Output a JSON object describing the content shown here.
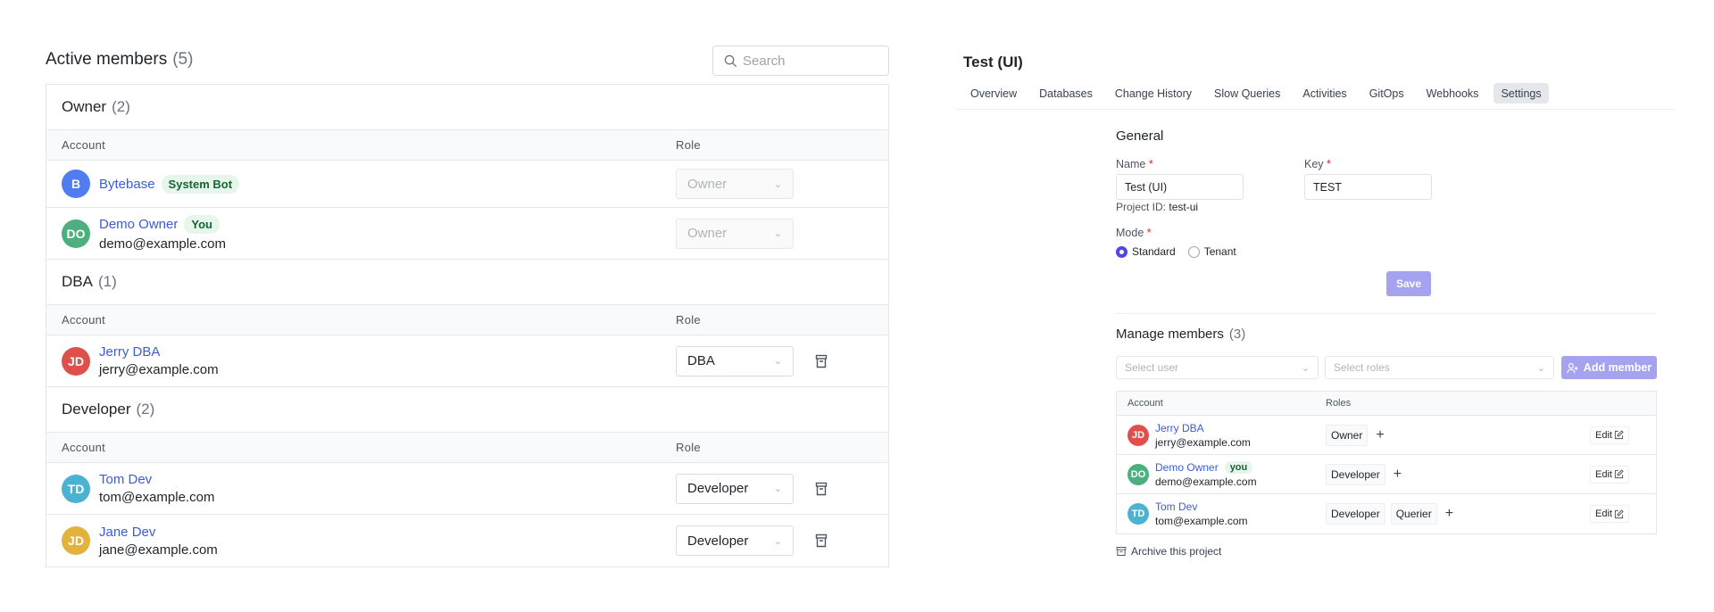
{
  "members": {
    "title": "Active members",
    "count": "(5)",
    "search_placeholder": "Search",
    "col_account": "Account",
    "col_role": "Role",
    "groups": [
      {
        "name": "Owner",
        "count": "(2)",
        "rows": [
          {
            "initials": "B",
            "color": "#4f7cf0",
            "name": "Bytebase",
            "badge": "System Bot",
            "email": "",
            "role": "Owner",
            "disabled": true
          },
          {
            "initials": "DO",
            "color": "#4caf7d",
            "name": "Demo Owner",
            "badge": "You",
            "email": "demo@example.com",
            "role": "Owner",
            "disabled": true
          }
        ]
      },
      {
        "name": "DBA",
        "count": "(1)",
        "rows": [
          {
            "initials": "JD",
            "color": "#e0504a",
            "name": "Jerry DBA",
            "badge": "",
            "email": "jerry@example.com",
            "role": "DBA",
            "disabled": false
          }
        ]
      },
      {
        "name": "Developer",
        "count": "(2)",
        "rows": [
          {
            "initials": "TD",
            "color": "#4bb3d1",
            "name": "Tom Dev",
            "badge": "",
            "email": "tom@example.com",
            "role": "Developer",
            "disabled": false
          },
          {
            "initials": "JD",
            "color": "#e3b23c",
            "name": "Jane Dev",
            "badge": "",
            "email": "jane@example.com",
            "role": "Developer",
            "disabled": false
          }
        ]
      }
    ]
  },
  "project": {
    "title": "Test (UI)",
    "tabs": [
      "Overview",
      "Databases",
      "Change History",
      "Slow Queries",
      "Activities",
      "GitOps",
      "Webhooks",
      "Settings"
    ],
    "active_tab": "Settings",
    "general": {
      "heading": "General",
      "name_label": "Name",
      "name_value": "Test (UI)",
      "key_label": "Key",
      "key_value": "TEST",
      "project_id_label": "Project ID:",
      "project_id": "test-ui",
      "mode_label": "Mode",
      "modes": [
        "Standard",
        "Tenant"
      ],
      "selected_mode": "Standard",
      "save": "Save",
      "required": "*"
    },
    "manage": {
      "heading": "Manage members",
      "count": "(3)",
      "select_user_placeholder": "Select user",
      "select_roles_placeholder": "Select roles",
      "add_member": "Add member",
      "col_account": "Account",
      "col_roles": "Roles",
      "edit": "Edit",
      "rows": [
        {
          "initials": "JD",
          "color": "#e0504a",
          "name": "Jerry DBA",
          "badge": "",
          "email": "jerry@example.com",
          "roles": [
            "Owner"
          ]
        },
        {
          "initials": "DO",
          "color": "#4caf7d",
          "name": "Demo Owner",
          "badge": "you",
          "email": "demo@example.com",
          "roles": [
            "Developer"
          ]
        },
        {
          "initials": "TD",
          "color": "#4bb3d1",
          "name": "Tom Dev",
          "badge": "",
          "email": "tom@example.com",
          "roles": [
            "Developer",
            "Querier"
          ]
        }
      ],
      "archive": "Archive this project"
    },
    "accent": "#4f46e5"
  }
}
